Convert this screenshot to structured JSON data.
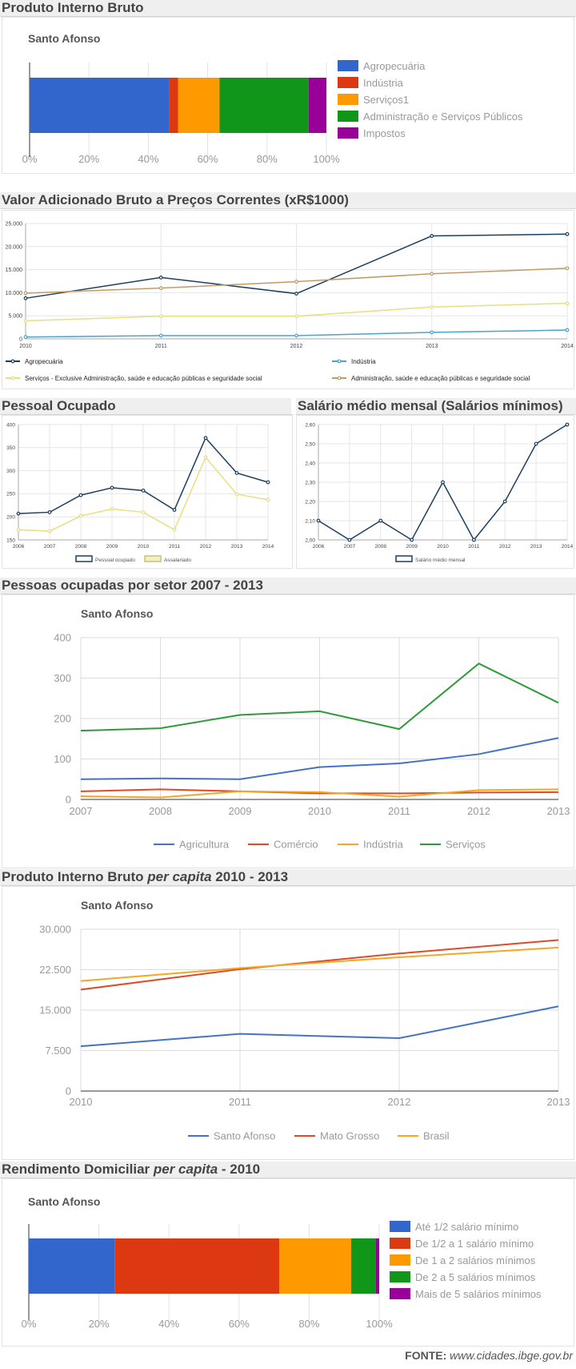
{
  "sections": {
    "pib": "Produto Interno Bruto",
    "vab": "Valor Adicionado Bruto a Preços Correntes (xR$1000)",
    "pessoal": "Pessoal Ocupado",
    "salario": "Salário médio mensal (Salários mínimos)",
    "setor": "Pessoas ocupadas por setor 2007 - 2013",
    "percapita_a": "Produto Interno Bruto ",
    "percapita_b": "per capita",
    "percapita_c": " 2010 - 2013",
    "rend_a": "Rendimento Domiciliar ",
    "rend_b": "per capita",
    "rend_c": " - 2010"
  },
  "footer": {
    "label": "FONTE:",
    "url": "www.cidades.ibge.gov.br"
  },
  "colors": {
    "blue": "#3366cc",
    "red": "#dc3912",
    "orange": "#ff9900",
    "green": "#109618",
    "purple": "#990099",
    "navy": "#1c3f5f",
    "cyan": "#4aa3c9",
    "yellow": "#e8df80",
    "tan": "#c19b62",
    "gblue": "#4472c4",
    "gred": "#dd4b28",
    "gorange": "#f5a623",
    "ggreen": "#2f9a3c"
  },
  "chart_data": [
    {
      "id": "pib",
      "type": "bar",
      "orientation": "horizontal-stacked-percent",
      "title": "Santo Afonso",
      "series": [
        {
          "name": "Agropecuária",
          "values": [
            47
          ]
        },
        {
          "name": "Indústria",
          "values": [
            3
          ]
        },
        {
          "name": "Serviços1",
          "values": [
            14
          ]
        },
        {
          "name": "Administração e Serviços Públicos",
          "values": [
            30
          ]
        },
        {
          "name": "Impostos",
          "values": [
            6
          ]
        }
      ],
      "xticks": [
        "0%",
        "20%",
        "40%",
        "60%",
        "80%",
        "100%"
      ],
      "xlim": [
        0,
        100
      ],
      "legend": "right"
    },
    {
      "id": "vab",
      "type": "line",
      "x": [
        "2010",
        "2011",
        "2012",
        "2013",
        "2014"
      ],
      "series": [
        {
          "name": "Agropecuária",
          "values": [
            8800,
            13300,
            9800,
            22300,
            22700
          ]
        },
        {
          "name": "Indústria",
          "values": [
            400,
            700,
            700,
            1400,
            1900
          ]
        },
        {
          "name": "Serviços - Exclusive Administração, saúde e educação públicas e seguridade social",
          "values": [
            3900,
            4900,
            4900,
            6900,
            7700
          ]
        },
        {
          "name": "Administração, saúde e educação públicas e seguridade social",
          "values": [
            9900,
            11000,
            12400,
            14100,
            15300
          ]
        }
      ],
      "yticks": [
        "0",
        "5.000",
        "10.000",
        "15.000",
        "20.000",
        "25.000"
      ],
      "ylim": [
        0,
        25000
      ],
      "legend": "bottom"
    },
    {
      "id": "pessoal",
      "type": "line",
      "x": [
        "2006",
        "2007",
        "2008",
        "2009",
        "2010",
        "2011",
        "2012",
        "2013",
        "2014"
      ],
      "series": [
        {
          "name": "Pessoal ocupado",
          "values": [
            207,
            210,
            247,
            263,
            257,
            215,
            371,
            295,
            275
          ]
        },
        {
          "name": "Assalariado",
          "values": [
            172,
            169,
            202,
            217,
            210,
            172,
            329,
            249,
            237
          ]
        }
      ],
      "yticks": [
        "150",
        "200",
        "250",
        "300",
        "350",
        "400"
      ],
      "ylim": [
        150,
        400
      ],
      "legend": "bottom"
    },
    {
      "id": "salario",
      "type": "line",
      "x": [
        "2006",
        "2007",
        "2008",
        "2009",
        "2010",
        "2011",
        "2012",
        "2013",
        "2014"
      ],
      "series": [
        {
          "name": "Salário médio mensal",
          "values": [
            2.1,
            2.0,
            2.1,
            2.0,
            2.3,
            2.0,
            2.2,
            2.5,
            2.6
          ]
        }
      ],
      "yticks": [
        "2,00",
        "2,10",
        "2,20",
        "2,30",
        "2,40",
        "2,50",
        "2,60"
      ],
      "ylim": [
        2.0,
        2.6
      ],
      "legend": "bottom"
    },
    {
      "id": "setor",
      "type": "line",
      "title": "Santo Afonso",
      "x": [
        "2007",
        "2008",
        "2009",
        "2010",
        "2011",
        "2012",
        "2013"
      ],
      "series": [
        {
          "name": "Agricultura",
          "values": [
            50,
            52,
            50,
            80,
            89,
            112,
            152
          ]
        },
        {
          "name": "Comércio",
          "values": [
            20,
            25,
            20,
            15,
            15,
            17,
            18
          ]
        },
        {
          "name": "Indústria",
          "values": [
            8,
            5,
            20,
            18,
            7,
            23,
            25
          ]
        },
        {
          "name": "Serviços",
          "values": [
            170,
            176,
            209,
            218,
            174,
            336,
            239
          ]
        }
      ],
      "yticks": [
        "0",
        "100",
        "200",
        "300",
        "400"
      ],
      "ylim": [
        0,
        400
      ],
      "legend": "bottom"
    },
    {
      "id": "percapita",
      "type": "line",
      "title": "Santo Afonso",
      "x": [
        "2010",
        "2011",
        "2012",
        "2013"
      ],
      "series": [
        {
          "name": "Santo Afonso",
          "values": [
            8300,
            10600,
            9800,
            15700
          ]
        },
        {
          "name": "Mato Grosso",
          "values": [
            18800,
            22600,
            25500,
            28000
          ]
        },
        {
          "name": "Brasil",
          "values": [
            20400,
            22800,
            24800,
            26600
          ]
        }
      ],
      "yticks": [
        "0",
        "7.500",
        "15.000",
        "22.500",
        "30.000"
      ],
      "ylim": [
        0,
        30000
      ],
      "legend": "bottom"
    },
    {
      "id": "rendimento",
      "type": "bar",
      "orientation": "horizontal-stacked-percent",
      "title": "Santo Afonso",
      "series": [
        {
          "name": "Até 1/2 salário mínimo",
          "values": [
            24.5
          ]
        },
        {
          "name": "De 1/2 a 1 salário mínimo",
          "values": [
            47
          ]
        },
        {
          "name": "De 1 a 2 salários mínimos",
          "values": [
            20.5
          ]
        },
        {
          "name": "De 2 a 5 salários mínimos",
          "values": [
            7
          ]
        },
        {
          "name": "Mais de 5 salários mínimos",
          "values": [
            1
          ]
        }
      ],
      "xticks": [
        "0%",
        "20%",
        "40%",
        "60%",
        "80%",
        "100%"
      ],
      "xlim": [
        0,
        100
      ],
      "legend": "right"
    }
  ]
}
